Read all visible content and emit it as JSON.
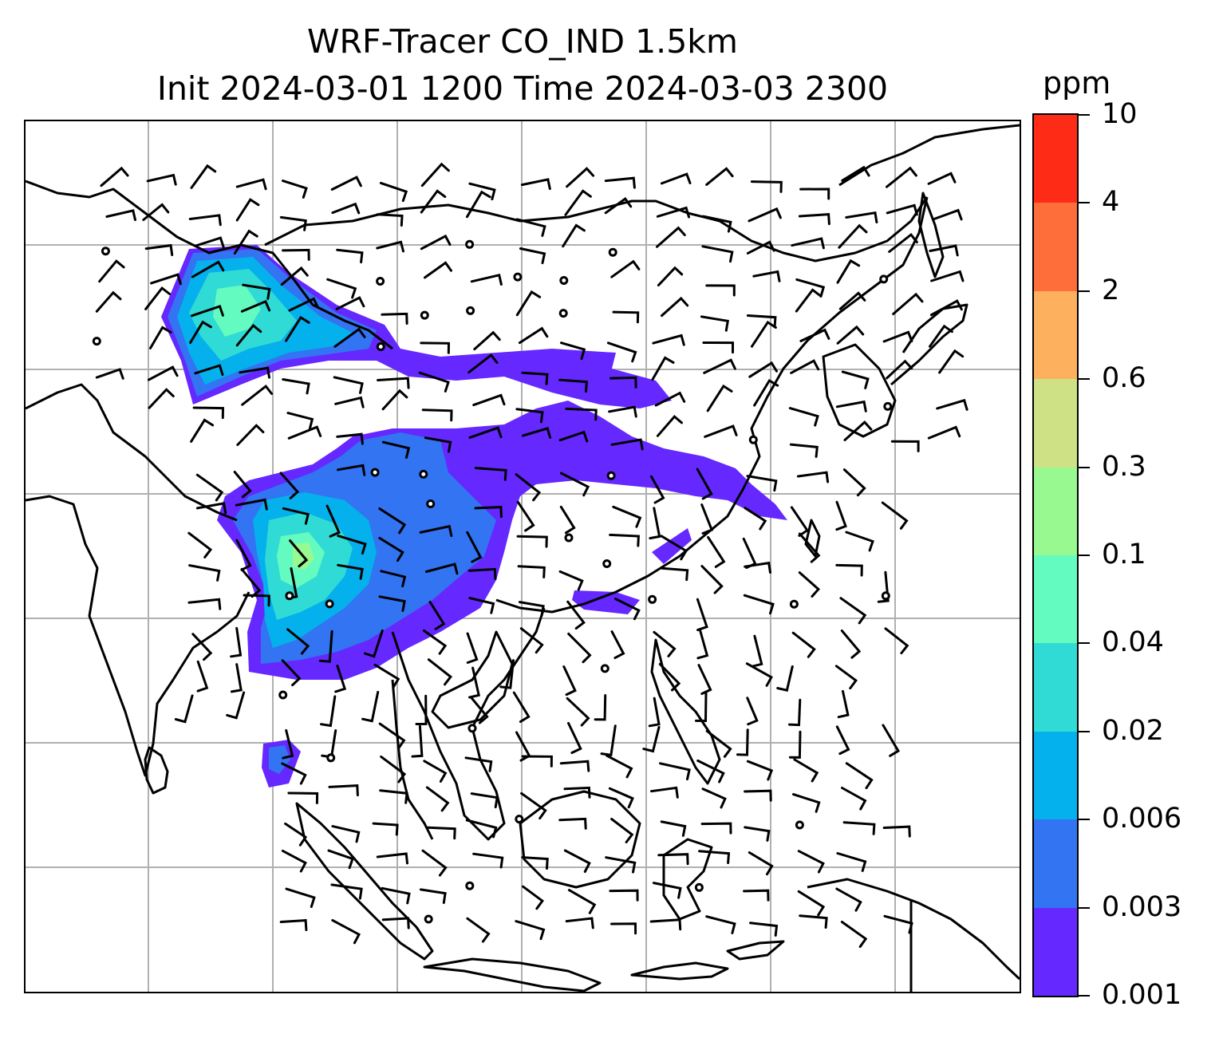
{
  "title": {
    "line1": "WRF-Tracer CO_IND 1.5km",
    "line2": "Init 2024-03-01 1200 Time 2024-03-03 2300"
  },
  "colorbar": {
    "unit": "ppm",
    "levels": [
      "0.001",
      "0.003",
      "0.006",
      "0.02",
      "0.04",
      "0.1",
      "0.3",
      "0.6",
      "2",
      "4",
      "10"
    ],
    "colors": [
      "#6528ff",
      "#3274f2",
      "#04b1ec",
      "#31dbd5",
      "#63fbc0",
      "#98f991",
      "#cfe185",
      "#fdb05e",
      "#fe6e3a",
      "#fe2b17"
    ]
  },
  "map": {
    "field": "CO_IND tracer concentration",
    "overlay": "wind barbs",
    "gridlines": true
  }
}
